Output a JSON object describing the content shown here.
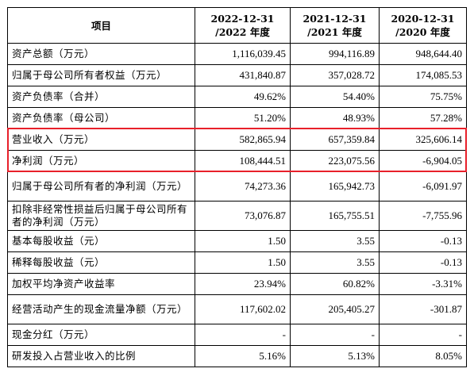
{
  "table": {
    "headers": {
      "item": "项目",
      "col1_line1": "2022-12-31",
      "col1_line2": "/2022 年度",
      "col2_line1": "2021-12-31",
      "col2_line2": "/2021 年度",
      "col3_line1": "2020-12-31",
      "col3_line2": "/2020 年度"
    },
    "rows": [
      {
        "label": "资产总额（万元）",
        "v2022": "1,116,039.45",
        "v2021": "994,116.89",
        "v2020": "948,644.40"
      },
      {
        "label": "归属于母公司所有者权益（万元）",
        "v2022": "431,840.87",
        "v2021": "357,028.72",
        "v2020": "174,085.53"
      },
      {
        "label": "资产负债率（合并）",
        "v2022": "49.62%",
        "v2021": "54.40%",
        "v2020": "75.75%"
      },
      {
        "label": "资产负债率（母公司）",
        "v2022": "51.20%",
        "v2021": "48.93%",
        "v2020": "57.28%"
      },
      {
        "label": "营业收入（万元）",
        "v2022": "582,865.94",
        "v2021": "657,359.84",
        "v2020": "325,606.14"
      },
      {
        "label": "净利润（万元）",
        "v2022": "108,444.51",
        "v2021": "223,075.56",
        "v2020": "-6,904.05"
      },
      {
        "label": "归属于母公司所有者的净利润（万元）",
        "v2022": "74,273.36",
        "v2021": "165,942.73",
        "v2020": "-6,091.97"
      },
      {
        "label": "扣除非经常性损益后归属于母公司所有者的净利润（万元）",
        "v2022": "73,076.87",
        "v2021": "165,755.51",
        "v2020": "-7,755.96"
      },
      {
        "label": "基本每股收益（元）",
        "v2022": "1.50",
        "v2021": "3.55",
        "v2020": "-0.13"
      },
      {
        "label": "稀释每股收益（元）",
        "v2022": "1.50",
        "v2021": "3.55",
        "v2020": "-0.13"
      },
      {
        "label": "加权平均净资产收益率",
        "v2022": "23.94%",
        "v2021": "60.82%",
        "v2020": "-3.31%"
      },
      {
        "label": "经营活动产生的现金流量净额（万元）",
        "v2022": "117,602.02",
        "v2021": "205,405.27",
        "v2020": "-301.87"
      },
      {
        "label": "现金分红（万元）",
        "v2022": "-",
        "v2021": "-",
        "v2020": "-"
      },
      {
        "label": "研发投入占营业收入的比例",
        "v2022": "5.16%",
        "v2021": "5.13%",
        "v2020": "8.05%"
      }
    ]
  },
  "highlight": {
    "color": "#e8202a",
    "rows": [
      "营业收入（万元）",
      "净利润（万元）"
    ]
  }
}
